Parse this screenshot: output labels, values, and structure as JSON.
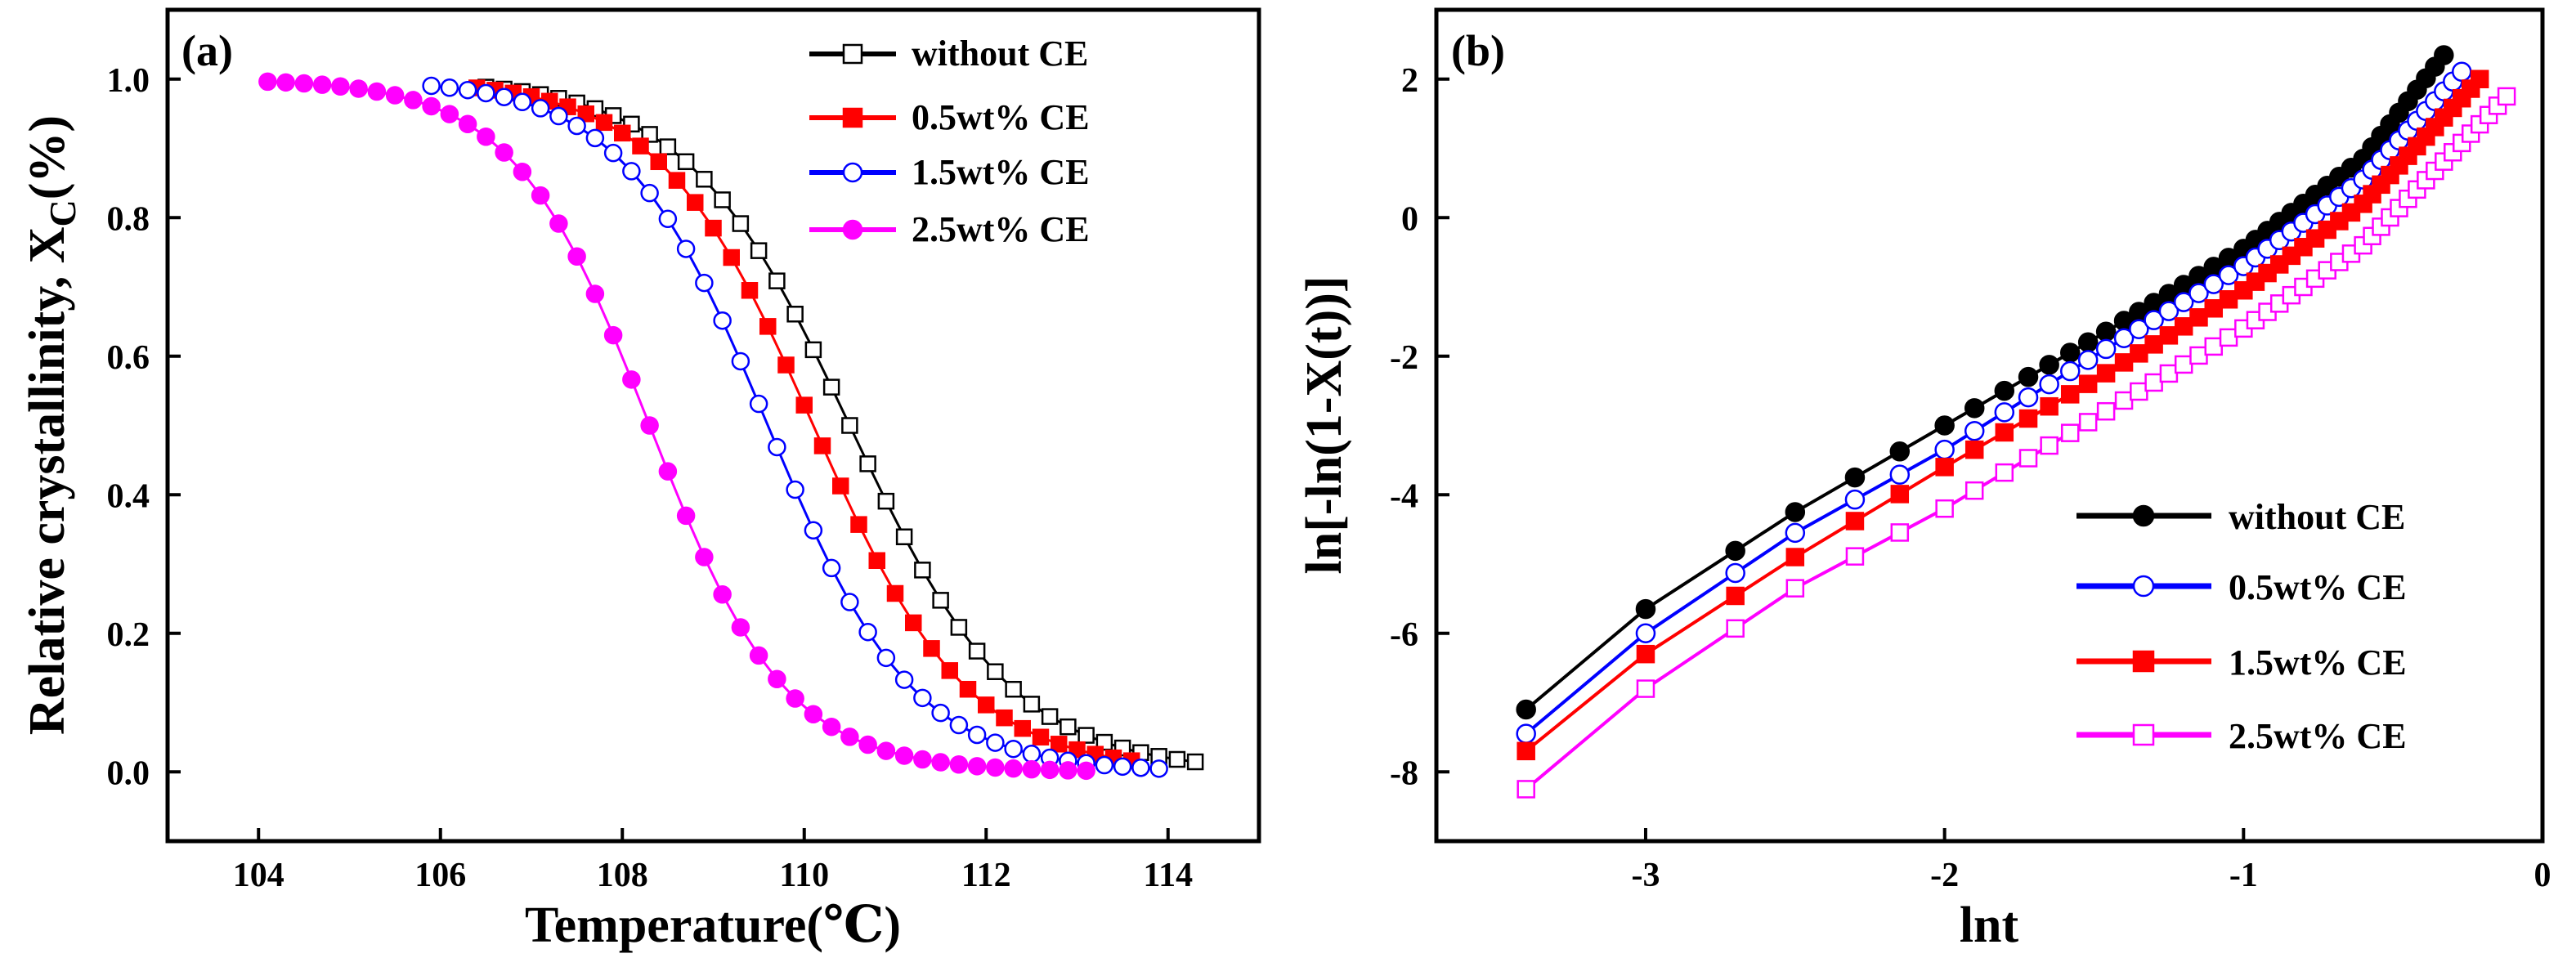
{
  "chart_data": [
    {
      "panel_label": "(a)",
      "type": "scatter-line",
      "xlabel": "Temperature(℃)",
      "ylabel_main": "Relative crystallinity, X",
      "ylabel_sub": "C",
      "ylabel_tail": "(%)",
      "xlim": [
        103,
        115
      ],
      "ylim": [
        -0.1,
        1.1
      ],
      "xticks": [
        104,
        106,
        108,
        110,
        112,
        114
      ],
      "yticks": [
        0.0,
        0.2,
        0.4,
        0.6,
        0.8,
        1.0
      ],
      "legend_position": "top-right",
      "series": [
        {
          "name": "without CE",
          "color": "#000000",
          "marker": "square-open",
          "x0": 106.5,
          "x1": 114.3,
          "xmid": 110.5,
          "k": 0.9,
          "step": 0.2
        },
        {
          "name": "0.5wt% CE",
          "color": "#ff0000",
          "marker": "square-filled",
          "x0": 106.4,
          "x1": 113.7,
          "xmid": 110.1,
          "k": 0.85,
          "step": 0.2
        },
        {
          "name": "1.5wt% CE",
          "color": "#0000ff",
          "marker": "circle-open",
          "x0": 105.9,
          "x1": 114.0,
          "xmid": 109.6,
          "k": 0.8,
          "step": 0.2
        },
        {
          "name": "2.5wt% CE",
          "color": "#ff00ff",
          "marker": "circle-filled",
          "x0": 104.1,
          "x1": 113.1,
          "xmid": 108.3,
          "k": 0.75,
          "step": 0.2
        }
      ]
    },
    {
      "panel_label": "(b)",
      "type": "scatter-line",
      "xlabel": "lnt",
      "ylabel": "ln[-ln(1-X(t))]",
      "xlim": [
        -3.7,
        0
      ],
      "ylim": [
        -9,
        3
      ],
      "xticks": [
        -3,
        -2,
        -1,
        0
      ],
      "yticks": [
        -8,
        -6,
        -4,
        -2,
        0,
        2
      ],
      "legend_position": "bottom-right",
      "series": [
        {
          "name": "without CE",
          "color": "#000000",
          "marker": "circle-filled",
          "curve": [
            [
              -3.4,
              -7.1
            ],
            [
              -3.0,
              -5.65
            ],
            [
              -2.5,
              -4.25
            ],
            [
              -2.0,
              -3.0
            ],
            [
              -1.5,
              -1.75
            ],
            [
              -1.0,
              -0.45
            ],
            [
              -0.6,
              0.85
            ],
            [
              -0.32,
              2.4
            ]
          ],
          "x_markers": [
            -3.4,
            -3.0,
            -2.7,
            -2.5,
            -2.3,
            -2.15,
            -2.0,
            -1.9,
            -1.8,
            -1.72,
            -1.65,
            -1.58,
            -1.52,
            -1.46,
            -1.4,
            -1.35,
            -1.3,
            -1.25,
            -1.2,
            -1.15,
            -1.1,
            -1.05,
            -1.0,
            -0.96,
            -0.92,
            -0.88,
            -0.84,
            -0.8,
            -0.76,
            -0.72,
            -0.68,
            -0.64,
            -0.6,
            -0.57,
            -0.54,
            -0.51,
            -0.48,
            -0.45,
            -0.42,
            -0.39,
            -0.36,
            -0.33
          ]
        },
        {
          "name": "0.5wt% CE",
          "color": "#0000ff",
          "marker": "circle-open",
          "curve": [
            [
              -3.4,
              -7.45
            ],
            [
              -3.0,
              -6.0
            ],
            [
              -2.5,
              -4.55
            ],
            [
              -2.0,
              -3.35
            ],
            [
              -1.5,
              -2.0
            ],
            [
              -1.0,
              -0.7
            ],
            [
              -0.6,
              0.55
            ],
            [
              -0.25,
              2.2
            ]
          ],
          "x_markers": [
            -3.4,
            -3.0,
            -2.7,
            -2.5,
            -2.3,
            -2.15,
            -2.0,
            -1.9,
            -1.8,
            -1.72,
            -1.65,
            -1.58,
            -1.52,
            -1.46,
            -1.4,
            -1.35,
            -1.3,
            -1.25,
            -1.2,
            -1.15,
            -1.1,
            -1.05,
            -1.0,
            -0.96,
            -0.92,
            -0.88,
            -0.84,
            -0.8,
            -0.76,
            -0.72,
            -0.68,
            -0.64,
            -0.6,
            -0.57,
            -0.54,
            -0.51,
            -0.48,
            -0.45,
            -0.42,
            -0.39,
            -0.36,
            -0.33,
            -0.3,
            -0.27
          ]
        },
        {
          "name": "1.5wt% CE",
          "color": "#ff0000",
          "marker": "square-filled",
          "curve": [
            [
              -3.4,
              -7.7
            ],
            [
              -3.0,
              -6.3
            ],
            [
              -2.5,
              -4.9
            ],
            [
              -2.0,
              -3.6
            ],
            [
              -1.5,
              -2.35
            ],
            [
              -1.0,
              -1.05
            ],
            [
              -0.6,
              0.2
            ],
            [
              -0.21,
              2.0
            ]
          ],
          "x_markers": [
            -3.4,
            -3.0,
            -2.7,
            -2.5,
            -2.3,
            -2.15,
            -2.0,
            -1.9,
            -1.8,
            -1.72,
            -1.65,
            -1.58,
            -1.52,
            -1.46,
            -1.4,
            -1.35,
            -1.3,
            -1.25,
            -1.2,
            -1.15,
            -1.1,
            -1.05,
            -1.0,
            -0.96,
            -0.92,
            -0.88,
            -0.84,
            -0.8,
            -0.76,
            -0.72,
            -0.68,
            -0.64,
            -0.6,
            -0.57,
            -0.54,
            -0.51,
            -0.48,
            -0.45,
            -0.42,
            -0.39,
            -0.36,
            -0.33,
            -0.3,
            -0.27,
            -0.24,
            -0.21
          ]
        },
        {
          "name": "2.5wt% CE",
          "color": "#ff00ff",
          "marker": "square-open",
          "curve": [
            [
              -3.4,
              -8.25
            ],
            [
              -3.0,
              -6.8
            ],
            [
              -2.5,
              -5.35
            ],
            [
              -2.0,
              -4.2
            ],
            [
              -1.5,
              -2.9
            ],
            [
              -1.0,
              -1.6
            ],
            [
              -0.6,
              -0.4
            ],
            [
              -0.12,
              1.75
            ]
          ],
          "x_markers": [
            -3.4,
            -3.0,
            -2.7,
            -2.5,
            -2.3,
            -2.15,
            -2.0,
            -1.9,
            -1.8,
            -1.72,
            -1.65,
            -1.58,
            -1.52,
            -1.46,
            -1.4,
            -1.35,
            -1.3,
            -1.25,
            -1.2,
            -1.15,
            -1.1,
            -1.05,
            -1.0,
            -0.96,
            -0.92,
            -0.88,
            -0.84,
            -0.8,
            -0.76,
            -0.72,
            -0.68,
            -0.64,
            -0.6,
            -0.57,
            -0.54,
            -0.51,
            -0.48,
            -0.45,
            -0.42,
            -0.39,
            -0.36,
            -0.33,
            -0.3,
            -0.27,
            -0.24,
            -0.21,
            -0.18,
            -0.15,
            -0.12
          ]
        }
      ]
    }
  ]
}
